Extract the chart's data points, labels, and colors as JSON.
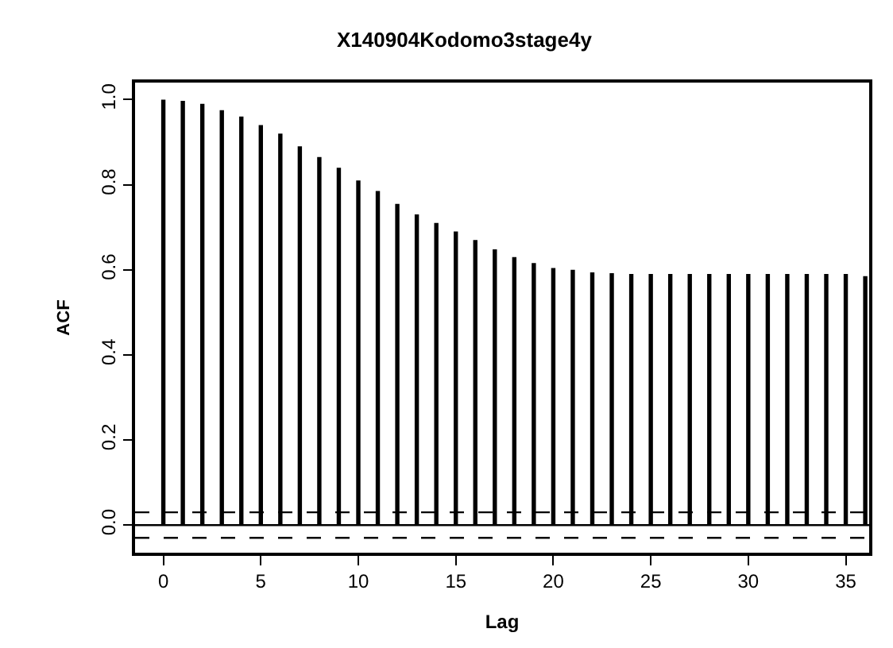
{
  "chart_data": {
    "type": "bar",
    "title": "X140904Kodomo3stage4y",
    "xlabel": "Lag",
    "ylabel": "ACF",
    "x": [
      0,
      1,
      2,
      3,
      4,
      5,
      6,
      7,
      8,
      9,
      10,
      11,
      12,
      13,
      14,
      15,
      16,
      17,
      18,
      19,
      20,
      21,
      22,
      23,
      24,
      25,
      26,
      27,
      28,
      29,
      30,
      31,
      32,
      33,
      34,
      35,
      36
    ],
    "values": [
      1.0,
      0.997,
      0.99,
      0.975,
      0.96,
      0.94,
      0.92,
      0.89,
      0.865,
      0.84,
      0.81,
      0.785,
      0.755,
      0.73,
      0.71,
      0.69,
      0.67,
      0.648,
      0.63,
      0.616,
      0.604,
      0.6,
      0.594,
      0.592,
      0.59,
      0.59,
      0.59,
      0.59,
      0.59,
      0.59,
      0.59,
      0.59,
      0.59,
      0.59,
      0.59,
      0.59,
      0.585
    ],
    "color": "#000000",
    "xlim": [
      -1.45,
      36.2
    ],
    "xticks": [
      0,
      5,
      10,
      15,
      20,
      25,
      30,
      35
    ],
    "ylim": [
      -0.065,
      1.04
    ],
    "yticks": [
      {
        "value": 0,
        "label": "0.0"
      },
      0.2,
      0.4,
      0.6,
      0.8,
      {
        "value": 1,
        "label": "1.0"
      }
    ],
    "ref_lines": [
      {
        "axis": "y",
        "value": 0,
        "color": "#000000",
        "line_style": "solid"
      },
      {
        "axis": "y",
        "value": 0.03,
        "color": "#000000",
        "line_style": "dashed"
      },
      {
        "axis": "y",
        "value": -0.03,
        "color": "#000000",
        "line_style": "dashed"
      }
    ]
  }
}
